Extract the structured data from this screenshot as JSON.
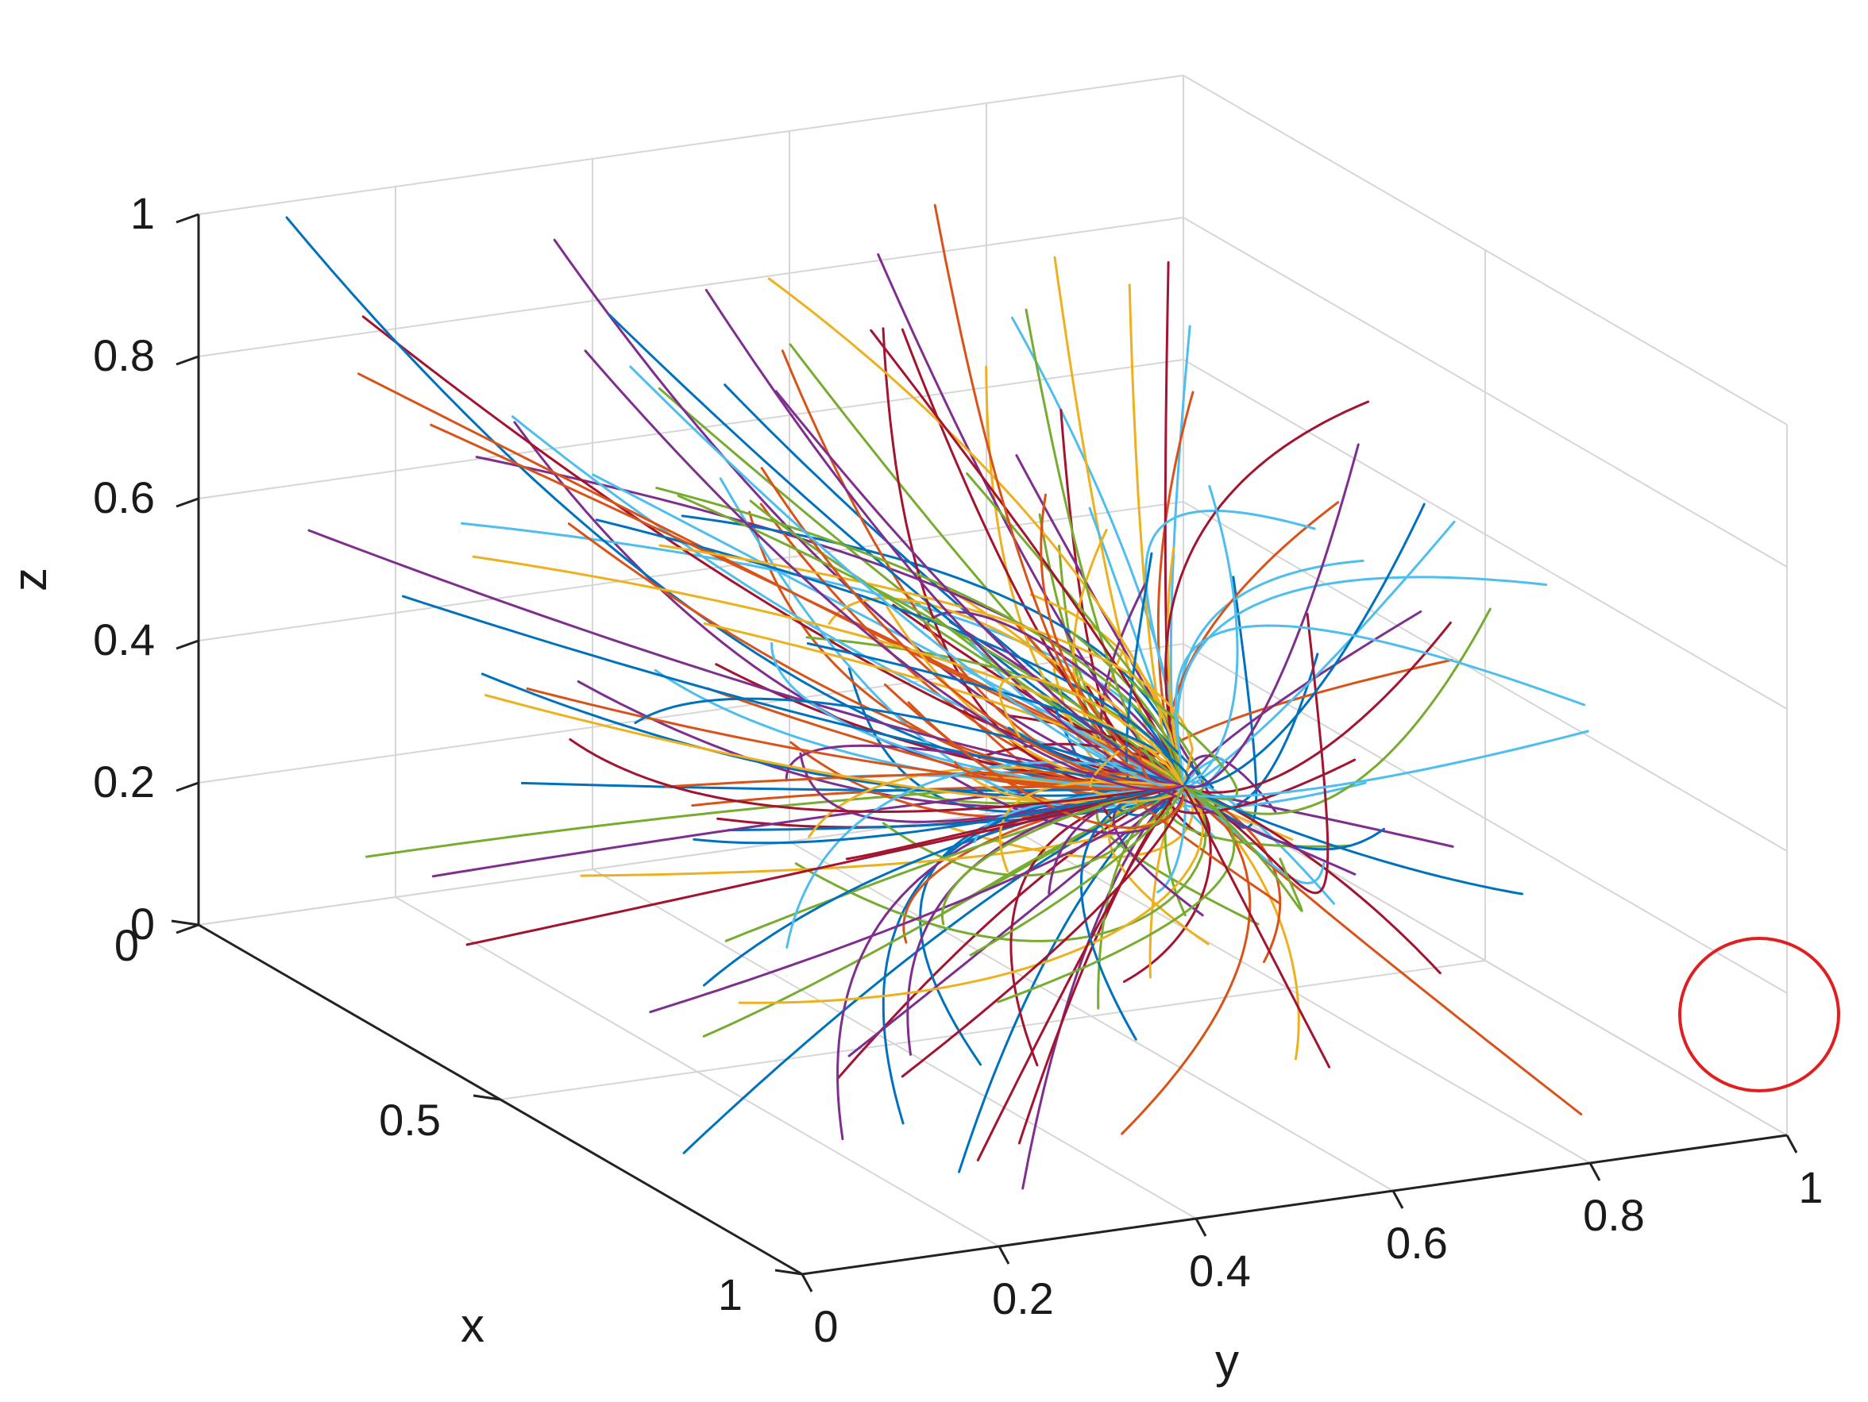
{
  "chart_data": {
    "type": "3d-line",
    "xlabel": "x",
    "ylabel": "y",
    "zlabel": "z",
    "xlim": [
      0,
      1
    ],
    "ylim": [
      0,
      1
    ],
    "zlim": [
      0,
      1
    ],
    "grid": true,
    "x_ticks": [
      "0",
      "0.5",
      "1"
    ],
    "y_ticks": [
      "0",
      "0.2",
      "0.4",
      "0.6",
      "0.8",
      "1"
    ],
    "z_ticks": [
      "0",
      "0.2",
      "0.4",
      "0.6",
      "0.8",
      "1"
    ],
    "convergence_point": {
      "x": 0,
      "y": 1,
      "z": 0
    },
    "highlight": {
      "shape": "circle",
      "color": "#e02020",
      "target": "convergence_point"
    },
    "trajectory_colors": [
      "#0072BD",
      "#D95319",
      "#EDB120",
      "#7E2F8E",
      "#77AC30",
      "#4DBEEE",
      "#A2142F"
    ],
    "trajectory_count": 200
  }
}
